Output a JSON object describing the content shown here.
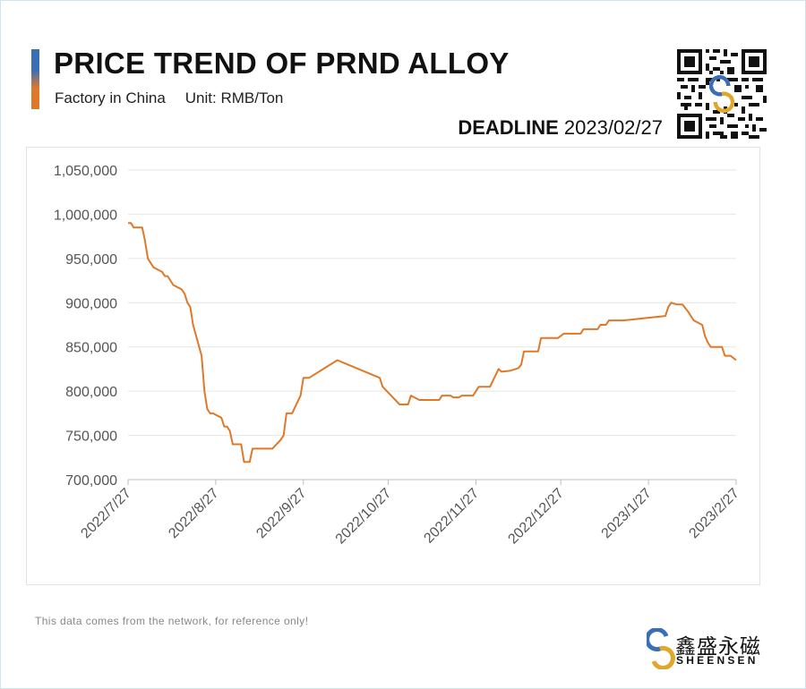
{
  "header": {
    "title": "PRICE TREND OF PRND ALLOY",
    "origin": "Factory in China",
    "unit": "Unit: RMB/Ton",
    "deadline_label": "DEADLINE",
    "deadline_date": "2023/02/27"
  },
  "footer": {
    "note": "This data comes from the network, for reference only!",
    "brand_cn": "鑫盛永磁",
    "brand_en": "SHEENSEN"
  },
  "colors": {
    "line": "#e0782a",
    "accent_blue": "#3a6fb5",
    "accent_orange": "#e0782a",
    "grid": "#e6e6e6"
  },
  "chart_data": {
    "type": "line",
    "title": "PRICE TREND OF PRND ALLOY",
    "xlabel": "",
    "ylabel": "",
    "ylim": [
      700000,
      1050000
    ],
    "yticks": [
      700000,
      750000,
      800000,
      850000,
      900000,
      950000,
      1000000,
      1050000
    ],
    "ytick_labels": [
      "700,000",
      "750,000",
      "800,000",
      "850,000",
      "900,000",
      "950,000",
      "1,000,000",
      "1,050,000"
    ],
    "xlim": [
      "2022-07-27",
      "2023-02-27"
    ],
    "xticks": [
      "2022-07-27",
      "2022-08-27",
      "2022-09-27",
      "2022-10-27",
      "2022-11-27",
      "2022-12-27",
      "2023-01-27",
      "2023-02-27"
    ],
    "xtick_labels": [
      "2022/7/27",
      "2022/8/27",
      "2022/9/27",
      "2022/10/27",
      "2022/11/27",
      "2022/12/27",
      "2023/1/27",
      "2023/2/27"
    ],
    "grid": true,
    "series": [
      {
        "color": "#e0782a",
        "points": [
          [
            "2022-07-27",
            990000
          ],
          [
            "2022-07-28",
            990000
          ],
          [
            "2022-07-29",
            985000
          ],
          [
            "2022-08-01",
            985000
          ],
          [
            "2022-08-02",
            970000
          ],
          [
            "2022-08-03",
            950000
          ],
          [
            "2022-08-05",
            940000
          ],
          [
            "2022-08-08",
            935000
          ],
          [
            "2022-08-09",
            930000
          ],
          [
            "2022-08-10",
            930000
          ],
          [
            "2022-08-12",
            920000
          ],
          [
            "2022-08-15",
            915000
          ],
          [
            "2022-08-16",
            910000
          ],
          [
            "2022-08-17",
            900000
          ],
          [
            "2022-08-18",
            895000
          ],
          [
            "2022-08-19",
            875000
          ],
          [
            "2022-08-22",
            840000
          ],
          [
            "2022-08-23",
            800000
          ],
          [
            "2022-08-24",
            780000
          ],
          [
            "2022-08-25",
            775000
          ],
          [
            "2022-08-26",
            775000
          ],
          [
            "2022-08-29",
            770000
          ],
          [
            "2022-08-30",
            760000
          ],
          [
            "2022-08-31",
            760000
          ],
          [
            "2022-09-01",
            755000
          ],
          [
            "2022-09-02",
            740000
          ],
          [
            "2022-09-05",
            740000
          ],
          [
            "2022-09-06",
            720000
          ],
          [
            "2022-09-08",
            720000
          ],
          [
            "2022-09-09",
            735000
          ],
          [
            "2022-09-16",
            735000
          ],
          [
            "2022-09-19",
            745000
          ],
          [
            "2022-09-20",
            750000
          ],
          [
            "2022-09-21",
            775000
          ],
          [
            "2022-09-23",
            775000
          ],
          [
            "2022-09-26",
            795000
          ],
          [
            "2022-09-27",
            815000
          ],
          [
            "2022-09-29",
            815000
          ],
          [
            "2022-10-09",
            835000
          ],
          [
            "2022-10-24",
            815000
          ],
          [
            "2022-10-25",
            805000
          ],
          [
            "2022-10-28",
            795000
          ],
          [
            "2022-10-31",
            785000
          ],
          [
            "2022-11-03",
            785000
          ],
          [
            "2022-11-04",
            795000
          ],
          [
            "2022-11-07",
            790000
          ],
          [
            "2022-11-14",
            790000
          ],
          [
            "2022-11-15",
            795000
          ],
          [
            "2022-11-18",
            795000
          ],
          [
            "2022-11-19",
            793000
          ],
          [
            "2022-11-21",
            793000
          ],
          [
            "2022-11-22",
            795000
          ],
          [
            "2022-11-26",
            795000
          ],
          [
            "2022-11-28",
            805000
          ],
          [
            "2022-12-02",
            805000
          ],
          [
            "2022-12-05",
            825000
          ],
          [
            "2022-12-06",
            822000
          ],
          [
            "2022-12-09",
            823000
          ],
          [
            "2022-12-12",
            826000
          ],
          [
            "2022-12-13",
            830000
          ],
          [
            "2022-12-14",
            845000
          ],
          [
            "2022-12-19",
            845000
          ],
          [
            "2022-12-20",
            860000
          ],
          [
            "2022-12-26",
            860000
          ],
          [
            "2022-12-28",
            865000
          ],
          [
            "2023-01-03",
            865000
          ],
          [
            "2023-01-04",
            870000
          ],
          [
            "2023-01-09",
            870000
          ],
          [
            "2023-01-10",
            875000
          ],
          [
            "2023-01-12",
            875000
          ],
          [
            "2023-01-13",
            880000
          ],
          [
            "2023-01-18",
            880000
          ],
          [
            "2023-02-02",
            885000
          ],
          [
            "2023-02-03",
            895000
          ],
          [
            "2023-02-04",
            900000
          ],
          [
            "2023-02-06",
            898000
          ],
          [
            "2023-02-08",
            898000
          ],
          [
            "2023-02-10",
            890000
          ],
          [
            "2023-02-12",
            880000
          ],
          [
            "2023-02-15",
            875000
          ],
          [
            "2023-02-16",
            862000
          ],
          [
            "2023-02-17",
            855000
          ],
          [
            "2023-02-18",
            850000
          ],
          [
            "2023-02-22",
            850000
          ],
          [
            "2023-02-23",
            840000
          ],
          [
            "2023-02-25",
            840000
          ],
          [
            "2023-02-27",
            835000
          ]
        ]
      }
    ]
  }
}
